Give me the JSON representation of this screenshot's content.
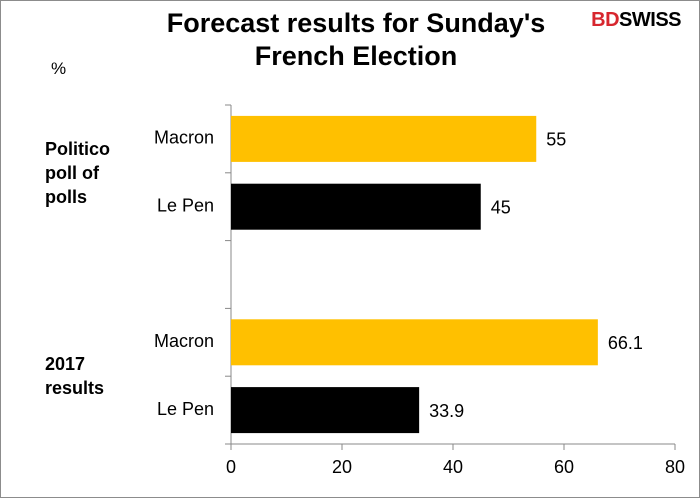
{
  "chart_data": {
    "type": "hbar",
    "title": "Forecast results for Sunday's French Election",
    "logo": {
      "prefix": "BD",
      "name": "SWISS"
    },
    "unit_label": "%",
    "groups": [
      "Politico poll of polls",
      "2017 results"
    ],
    "categories": [
      "Macron",
      "Le Pen",
      null,
      "Macron",
      "Le Pen"
    ],
    "values": [
      55,
      45,
      null,
      66.1,
      33.9
    ],
    "colors": [
      "#ffc000",
      "#000000",
      null,
      "#ffc000",
      "#000000"
    ],
    "xlim": [
      0,
      80
    ],
    "xticks": [
      0,
      20,
      40,
      60,
      80
    ]
  }
}
